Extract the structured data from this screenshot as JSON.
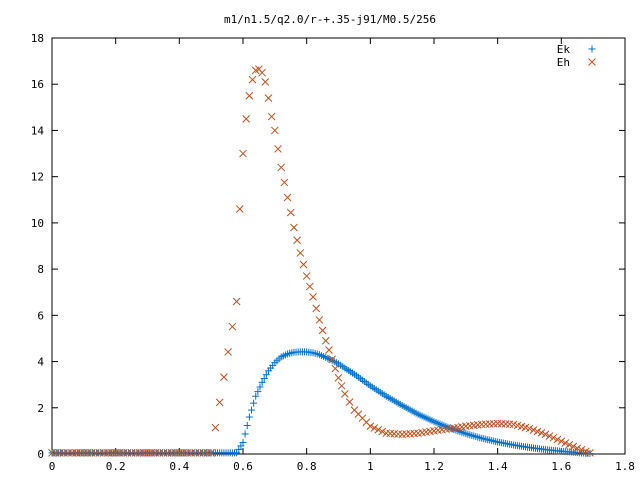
{
  "chart_data": {
    "type": "scatter",
    "title": "m1/n1.5/q2.0/r-+.35-j91/M0.5/256",
    "xlabel": "",
    "ylabel": "",
    "xlim": [
      0,
      1.8
    ],
    "ylim": [
      0,
      18
    ],
    "xticks": [
      "0",
      "0.2",
      "0.4",
      "0.6",
      "0.8",
      "1",
      "1.2",
      "1.4",
      "1.6",
      "1.8"
    ],
    "yticks": [
      "0",
      "2",
      "4",
      "6",
      "8",
      "10",
      "12",
      "14",
      "16",
      "18"
    ],
    "grid": false,
    "legend": "top-right",
    "series": [
      {
        "name": "Ek",
        "marker": "plus",
        "color": "#0072d0",
        "x": [
          0.0,
          0.1,
          0.2,
          0.3,
          0.4,
          0.5,
          0.58,
          0.6,
          0.62,
          0.64,
          0.66,
          0.68,
          0.7,
          0.72,
          0.74,
          0.76,
          0.78,
          0.8,
          0.82,
          0.84,
          0.86,
          0.88,
          0.9,
          0.92,
          0.95,
          1.0,
          1.05,
          1.1,
          1.15,
          1.2,
          1.25,
          1.3,
          1.35,
          1.4,
          1.45,
          1.5,
          1.55,
          1.6,
          1.65,
          1.69
        ],
        "y": [
          0.05,
          0.05,
          0.05,
          0.05,
          0.05,
          0.05,
          0.05,
          0.5,
          1.6,
          2.5,
          3.1,
          3.6,
          3.95,
          4.2,
          4.33,
          4.4,
          4.42,
          4.42,
          4.38,
          4.3,
          4.18,
          4.05,
          3.9,
          3.72,
          3.45,
          2.95,
          2.5,
          2.1,
          1.72,
          1.4,
          1.12,
          0.88,
          0.68,
          0.52,
          0.39,
          0.28,
          0.19,
          0.12,
          0.06,
          0.02
        ]
      },
      {
        "name": "Eh",
        "marker": "cross",
        "color": "#c0501c",
        "x": [
          0.0,
          0.1,
          0.2,
          0.3,
          0.4,
          0.5,
          0.58,
          0.59,
          0.6,
          0.61,
          0.62,
          0.63,
          0.64,
          0.65,
          0.66,
          0.67,
          0.68,
          0.69,
          0.7,
          0.72,
          0.74,
          0.76,
          0.78,
          0.8,
          0.82,
          0.84,
          0.86,
          0.88,
          0.9,
          0.92,
          0.95,
          1.0,
          1.05,
          1.1,
          1.15,
          1.2,
          1.25,
          1.3,
          1.35,
          1.4,
          1.45,
          1.5,
          1.55,
          1.6,
          1.65,
          1.69
        ],
        "y": [
          0.05,
          0.05,
          0.05,
          0.05,
          0.05,
          0.05,
          6.6,
          10.6,
          13.0,
          14.5,
          15.5,
          16.2,
          16.6,
          16.65,
          16.5,
          16.1,
          15.4,
          14.6,
          14.0,
          12.4,
          11.1,
          9.8,
          8.7,
          7.7,
          6.8,
          5.8,
          4.9,
          4.1,
          3.3,
          2.6,
          1.9,
          1.2,
          0.9,
          0.85,
          0.9,
          1.0,
          1.1,
          1.2,
          1.28,
          1.32,
          1.28,
          1.1,
          0.85,
          0.55,
          0.25,
          0.05
        ]
      }
    ]
  }
}
